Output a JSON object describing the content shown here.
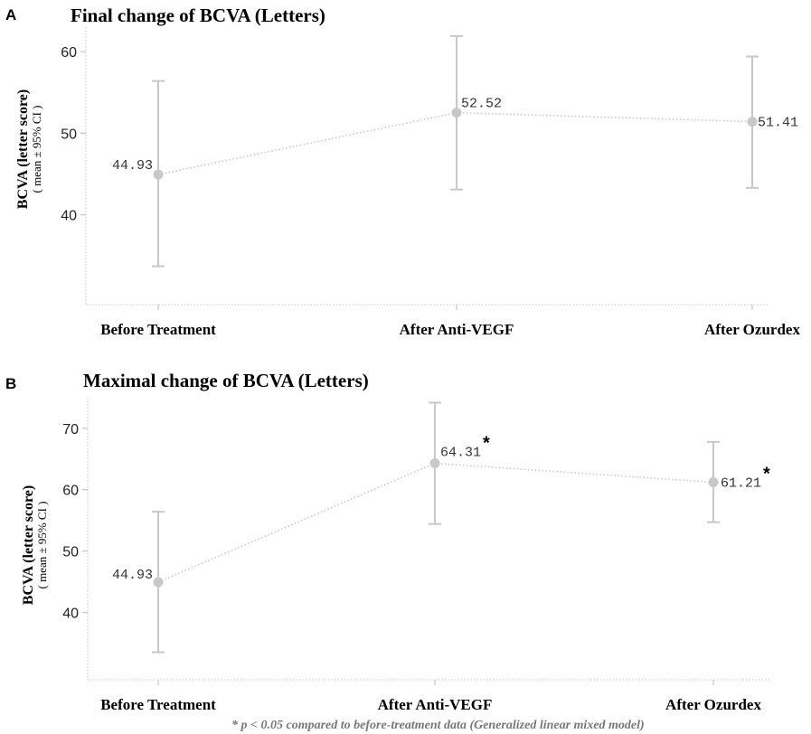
{
  "chart_data": [
    {
      "type": "line",
      "panel": "A",
      "title": "Final change of BCVA (Letters)",
      "ylabel": "BCVA (letter score)",
      "ylabel_sub": "( mean ± 95% CI )",
      "categories": [
        "Before Treatment",
        "After Anti-VEGF",
        "After Ozurdex"
      ],
      "values": [
        44.93,
        52.52,
        51.41
      ],
      "ci_low": [
        33.7,
        43.1,
        43.3
      ],
      "ci_high": [
        56.4,
        61.9,
        59.4
      ],
      "data_labels": [
        "44.93",
        "52.52",
        "51.41"
      ],
      "significant": [
        false,
        false,
        false
      ],
      "ylim": [
        29,
        63
      ],
      "yticks": [
        40,
        50,
        60
      ],
      "grid": false,
      "line_style": "dotted",
      "color": "#c8c8c8"
    },
    {
      "type": "line",
      "panel": "B",
      "title": "Maximal change of BCVA (Letters)",
      "ylabel": "BCVA (letter score)",
      "ylabel_sub": "( mean ± 95% CI )",
      "categories": [
        "Before Treatment",
        "After Anti-VEGF",
        "After Ozurdex"
      ],
      "values": [
        44.93,
        64.31,
        61.21
      ],
      "ci_low": [
        33.5,
        54.4,
        54.7
      ],
      "ci_high": [
        56.4,
        74.2,
        67.8
      ],
      "data_labels": [
        "44.93",
        "64.31",
        "61.21"
      ],
      "significant": [
        false,
        true,
        true
      ],
      "significance_marker": "*",
      "ylim": [
        29,
        75
      ],
      "yticks": [
        40,
        50,
        60,
        70
      ],
      "grid": false,
      "line_style": "dotted",
      "color": "#c8c8c8"
    }
  ],
  "footnote": "* p < 0.05 compared to before-treatment data (Generalized linear mixed model)"
}
